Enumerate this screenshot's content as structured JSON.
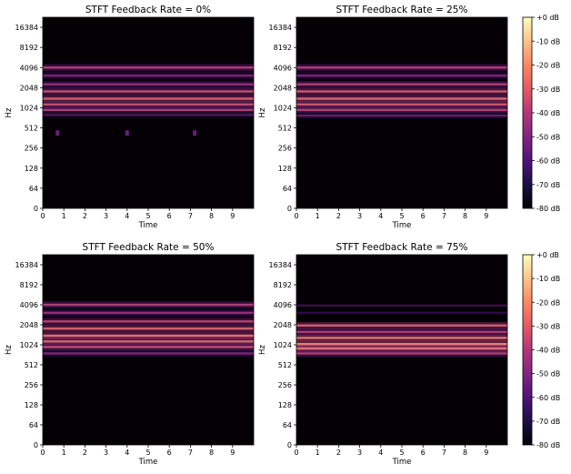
{
  "chart_data": [
    {
      "type": "heatmap",
      "title": "STFT Feedback Rate = 0%",
      "xlabel": "Time",
      "ylabel": "Hz",
      "x_ticks": [
        "0",
        "1",
        "2",
        "3",
        "4",
        "5",
        "6",
        "7",
        "8",
        "9"
      ],
      "xlim": [
        0,
        10
      ],
      "y_scale": "log2",
      "y_ticks": [
        "0",
        "64",
        "128",
        "256",
        "512",
        "1024",
        "2048",
        "4096",
        "8192",
        "16384"
      ],
      "harmonic_bands_hz": [
        {
          "hz": 4096,
          "level_db": -30
        },
        {
          "hz": 3100,
          "level_db": -40
        },
        {
          "hz": 2300,
          "level_db": -35
        },
        {
          "hz": 1800,
          "level_db": -25
        },
        {
          "hz": 1400,
          "level_db": -20
        },
        {
          "hz": 1150,
          "level_db": -25
        },
        {
          "hz": 950,
          "level_db": -30
        },
        {
          "hz": 800,
          "level_db": -50
        }
      ],
      "blips": [
        {
          "time": 0.7,
          "hz": 430,
          "level_db": -55
        },
        {
          "time": 4.0,
          "hz": 430,
          "level_db": -55
        },
        {
          "time": 7.2,
          "hz": 430,
          "level_db": -55
        }
      ]
    },
    {
      "type": "heatmap",
      "title": "STFT Feedback Rate = 25%",
      "xlabel": "Time",
      "ylabel": "Hz",
      "x_ticks": [
        "0",
        "1",
        "2",
        "3",
        "4",
        "5",
        "6",
        "7",
        "8",
        "9"
      ],
      "xlim": [
        0,
        10
      ],
      "y_scale": "log2",
      "y_ticks": [
        "0",
        "64",
        "128",
        "256",
        "512",
        "1024",
        "2048",
        "4096",
        "8192",
        "16384"
      ],
      "harmonic_bands_hz": [
        {
          "hz": 4096,
          "level_db": -30
        },
        {
          "hz": 3100,
          "level_db": -40
        },
        {
          "hz": 2300,
          "level_db": -30
        },
        {
          "hz": 1800,
          "level_db": -22
        },
        {
          "hz": 1400,
          "level_db": -18
        },
        {
          "hz": 1150,
          "level_db": -22
        },
        {
          "hz": 950,
          "level_db": -28
        },
        {
          "hz": 780,
          "level_db": -45
        }
      ],
      "blips": []
    },
    {
      "type": "heatmap",
      "title": "STFT Feedback Rate = 50%",
      "xlabel": "Time",
      "ylabel": "Hz",
      "x_ticks": [
        "0",
        "1",
        "2",
        "3",
        "4",
        "5",
        "6",
        "7",
        "8",
        "9"
      ],
      "xlim": [
        0,
        10
      ],
      "y_scale": "log2",
      "y_ticks": [
        "0",
        "64",
        "128",
        "256",
        "512",
        "1024",
        "2048",
        "4096",
        "8192",
        "16384"
      ],
      "harmonic_bands_hz": [
        {
          "hz": 4096,
          "level_db": -30
        },
        {
          "hz": 3100,
          "level_db": -35
        },
        {
          "hz": 2300,
          "level_db": -28
        },
        {
          "hz": 1800,
          "level_db": -20
        },
        {
          "hz": 1400,
          "level_db": -15
        },
        {
          "hz": 1150,
          "level_db": -18
        },
        {
          "hz": 950,
          "level_db": -25
        },
        {
          "hz": 760,
          "level_db": -40
        }
      ],
      "blips": []
    },
    {
      "type": "heatmap",
      "title": "STFT Feedback Rate = 75%",
      "xlabel": "Time",
      "ylabel": "Hz",
      "x_ticks": [
        "0",
        "1",
        "2",
        "3",
        "4",
        "5",
        "6",
        "7",
        "8",
        "9"
      ],
      "xlim": [
        0,
        10
      ],
      "y_scale": "log2",
      "y_ticks": [
        "0",
        "64",
        "128",
        "256",
        "512",
        "1024",
        "2048",
        "4096",
        "8192",
        "16384"
      ],
      "harmonic_bands_hz": [
        {
          "hz": 4000,
          "level_db": -55
        },
        {
          "hz": 3100,
          "level_db": -60
        },
        {
          "hz": 2000,
          "level_db": -20
        },
        {
          "hz": 1600,
          "level_db": -30
        },
        {
          "hz": 1300,
          "level_db": -15
        },
        {
          "hz": 1050,
          "level_db": -12
        },
        {
          "hz": 900,
          "level_db": -15
        },
        {
          "hz": 760,
          "level_db": -30
        }
      ],
      "blips": []
    }
  ],
  "colorbar": {
    "colormap": "magma",
    "range_db": [
      -80,
      0
    ],
    "tick_labels": [
      "+0 dB",
      "-10 dB",
      "-20 dB",
      "-30 dB",
      "-40 dB",
      "-50 dB",
      "-60 dB",
      "-70 dB",
      "-80 dB"
    ]
  }
}
